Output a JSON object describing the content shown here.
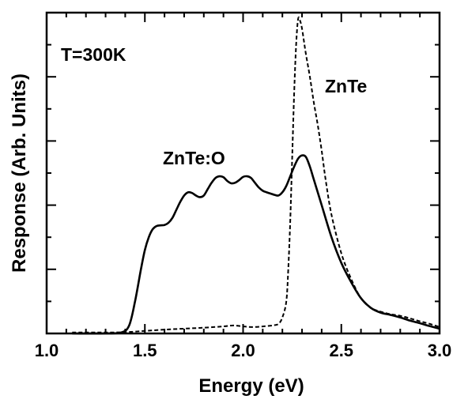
{
  "chart_data": {
    "type": "line",
    "xlabel": "Energy (eV)",
    "ylabel": "Response (Arb. Units)",
    "xlim": [
      1.0,
      3.0
    ],
    "ylim": [
      0,
      1.0
    ],
    "x_ticks": [
      "1.0",
      "1.5",
      "2.0",
      "2.5",
      "3.0"
    ],
    "x_tick_values": [
      1.0,
      1.5,
      2.0,
      2.5,
      3.0
    ],
    "y_tick_labels_shown": false,
    "grid": false,
    "annotations": [
      {
        "text": "T=300K",
        "at": [
          1.06,
          0.93
        ]
      },
      {
        "text": "ZnTe:O",
        "at": [
          1.58,
          0.575
        ]
      },
      {
        "text": "ZnTe",
        "at": [
          2.37,
          0.82
        ]
      }
    ],
    "series": [
      {
        "name": "ZnTe:O",
        "line_style": "solid",
        "x": [
          1.13,
          1.3,
          1.38,
          1.42,
          1.45,
          1.48,
          1.5,
          1.52,
          1.54,
          1.56,
          1.58,
          1.6,
          1.62,
          1.64,
          1.66,
          1.68,
          1.7,
          1.72,
          1.74,
          1.76,
          1.78,
          1.8,
          1.82,
          1.84,
          1.86,
          1.88,
          1.9,
          1.92,
          1.94,
          1.96,
          1.98,
          2.0,
          2.02,
          2.04,
          2.06,
          2.08,
          2.1,
          2.12,
          2.14,
          2.16,
          2.18,
          2.2,
          2.22,
          2.24,
          2.26,
          2.28,
          2.3,
          2.32,
          2.34,
          2.36,
          2.4,
          2.45,
          2.5,
          2.55,
          2.6,
          2.65,
          2.7,
          2.75,
          2.8,
          2.85,
          2.9,
          2.95,
          3.0
        ],
        "y": [
          0.0,
          0.0,
          0.003,
          0.025,
          0.1,
          0.2,
          0.26,
          0.3,
          0.325,
          0.335,
          0.337,
          0.338,
          0.345,
          0.36,
          0.385,
          0.41,
          0.43,
          0.44,
          0.438,
          0.43,
          0.425,
          0.43,
          0.45,
          0.47,
          0.485,
          0.49,
          0.487,
          0.475,
          0.468,
          0.47,
          0.478,
          0.488,
          0.49,
          0.485,
          0.47,
          0.455,
          0.445,
          0.44,
          0.436,
          0.432,
          0.43,
          0.44,
          0.46,
          0.49,
          0.52,
          0.545,
          0.555,
          0.55,
          0.52,
          0.48,
          0.4,
          0.3,
          0.22,
          0.16,
          0.11,
          0.08,
          0.065,
          0.058,
          0.05,
          0.04,
          0.032,
          0.023,
          0.015
        ]
      },
      {
        "name": "ZnTe",
        "line_style": "dashed",
        "x": [
          1.13,
          1.3,
          1.4,
          1.5,
          1.6,
          1.7,
          1.8,
          1.9,
          1.95,
          2.0,
          2.05,
          2.1,
          2.15,
          2.18,
          2.2,
          2.22,
          2.23,
          2.24,
          2.25,
          2.26,
          2.27,
          2.28,
          2.29,
          2.3,
          2.31,
          2.32,
          2.34,
          2.36,
          2.38,
          2.4,
          2.42,
          2.45,
          2.5,
          2.55,
          2.6,
          2.65,
          2.7,
          2.75,
          2.8,
          2.85,
          2.9,
          2.95,
          3.0
        ],
        "y": [
          0.003,
          0.003,
          0.004,
          0.008,
          0.012,
          0.015,
          0.018,
          0.022,
          0.025,
          0.022,
          0.02,
          0.022,
          0.025,
          0.03,
          0.05,
          0.1,
          0.2,
          0.35,
          0.55,
          0.75,
          0.9,
          0.98,
          0.975,
          0.95,
          0.91,
          0.87,
          0.8,
          0.72,
          0.65,
          0.57,
          0.48,
          0.37,
          0.25,
          0.17,
          0.11,
          0.08,
          0.068,
          0.06,
          0.055,
          0.047,
          0.038,
          0.03,
          0.02
        ]
      }
    ]
  }
}
